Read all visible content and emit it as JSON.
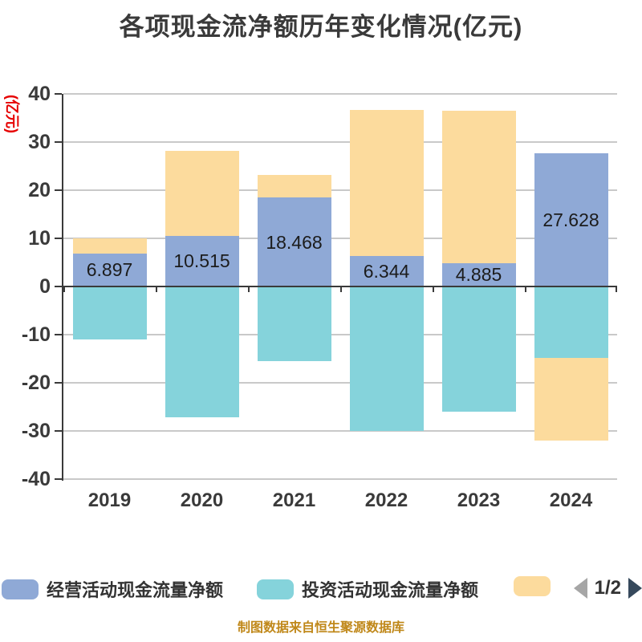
{
  "title": "各项现金流净额历年变化情况(亿元)",
  "y_axis": {
    "unit_label": "(亿元)",
    "min": -40,
    "max": 40,
    "tick_step": 10,
    "ticks": [
      40,
      30,
      20,
      10,
      0,
      -10,
      -20,
      -30,
      -40
    ]
  },
  "chart_data": {
    "type": "bar",
    "stacked": true,
    "grid": true,
    "legend_position": "bottom",
    "categories": [
      "2019",
      "2020",
      "2021",
      "2022",
      "2023",
      "2024"
    ],
    "ylim": [
      -40,
      40
    ],
    "series": [
      {
        "name": "经营活动现金流量净额",
        "color": "#8fa9d6",
        "values": [
          6.897,
          10.515,
          18.468,
          6.344,
          4.885,
          27.628
        ],
        "data_labels": [
          "6.897",
          "10.515",
          "18.468",
          "6.344",
          "4.885",
          "27.628"
        ]
      },
      {
        "name": "投资活动现金流量净额",
        "color": "#85d3db",
        "values": [
          -11.0,
          -27.2,
          -15.5,
          -30.0,
          -26.0,
          -14.8
        ]
      },
      {
        "name": "",
        "color": "#fcdb9d",
        "values": [
          3.1,
          17.7,
          4.7,
          30.4,
          31.6,
          -17.2
        ]
      }
    ]
  },
  "legend": {
    "items": [
      {
        "label": "经营活动现金流量净额",
        "color": "#8fa9d6"
      },
      {
        "label": "投资活动现金流量净额",
        "color": "#85d3db"
      },
      {
        "label": "",
        "color": "#fcdb9d"
      }
    ],
    "pagination": {
      "text": "1/2"
    }
  },
  "footer": {
    "note": "制图数据来自恒生聚源数据库"
  },
  "colors": {
    "title": "#3a3a3a",
    "axis": "#3a3a3a",
    "gridline": "#c9c9c9",
    "y_unit_label": "#e60000",
    "value_label": "#1c1c1c",
    "footer": "#c0881a",
    "pager_prev": "#a6a6a6",
    "pager_next": "#36495c"
  }
}
